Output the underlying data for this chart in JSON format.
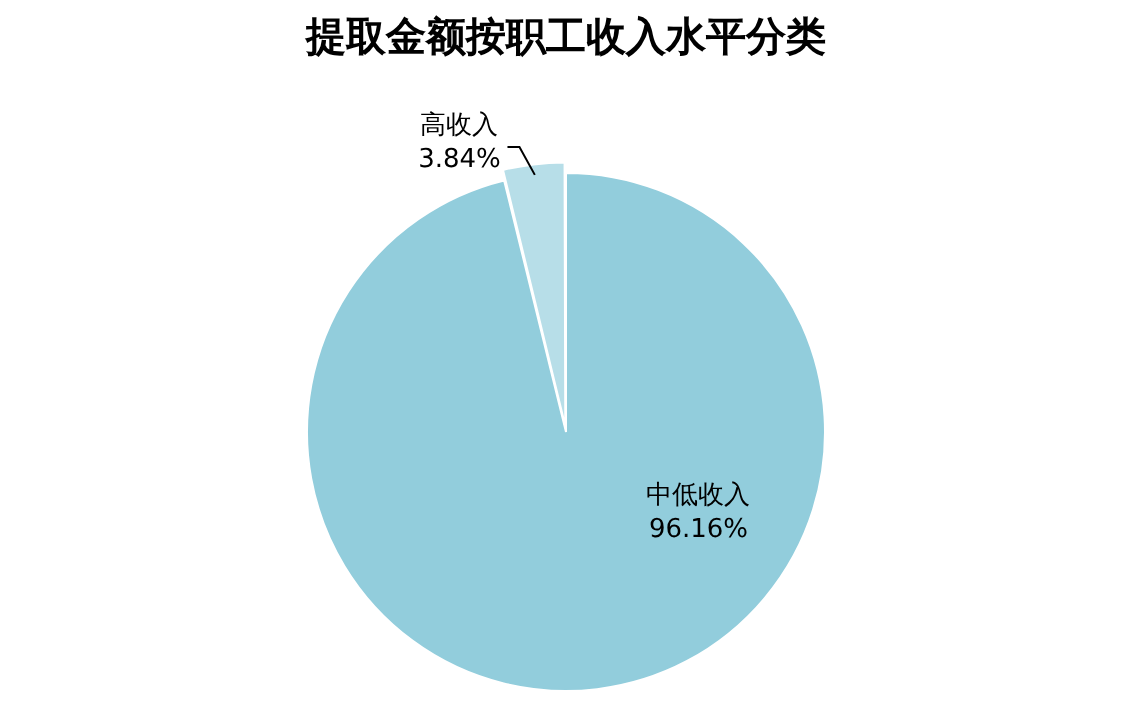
{
  "chart_data": {
    "type": "pie",
    "title": "提取金额按职工收入水平分类",
    "categories": [
      "中低收入",
      "高收入"
    ],
    "values": [
      96.16,
      3.84
    ],
    "value_labels": [
      "96.16%",
      "3.84%"
    ],
    "colors": [
      "#92cddc",
      "#b7dee8"
    ],
    "legend": false
  }
}
